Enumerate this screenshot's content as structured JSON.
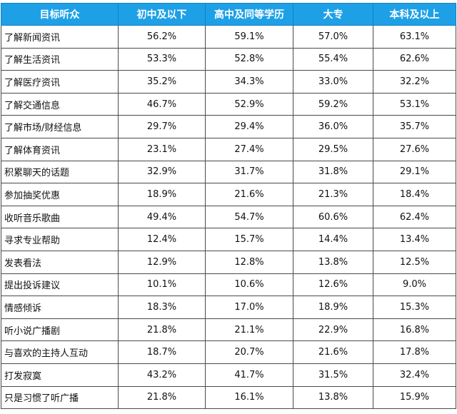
{
  "table": {
    "headers": [
      "目标听众",
      "初中及以下",
      "高中及同等学历",
      "大专",
      "本科及以上"
    ],
    "rows": [
      {
        "label": "了解新闻资讯",
        "values": [
          "56.2%",
          "59.1%",
          "57.0%",
          "63.1%"
        ]
      },
      {
        "label": "了解生活资讯",
        "values": [
          "53.3%",
          "52.8%",
          "55.4%",
          "62.6%"
        ]
      },
      {
        "label": "了解医疗资讯",
        "values": [
          "35.2%",
          "34.3%",
          "33.0%",
          "32.2%"
        ]
      },
      {
        "label": "了解交通信息",
        "values": [
          "46.7%",
          "52.9%",
          "59.2%",
          "53.1%"
        ]
      },
      {
        "label": "了解市场/财经信息",
        "values": [
          "29.7%",
          "29.4%",
          "36.0%",
          "35.7%"
        ]
      },
      {
        "label": "了解体育资讯",
        "values": [
          "23.1%",
          "27.4%",
          "29.5%",
          "27.6%"
        ]
      },
      {
        "label": "积累聊天的话题",
        "values": [
          "32.9%",
          "31.7%",
          "31.8%",
          "29.1%"
        ]
      },
      {
        "label": "参加抽奖优惠",
        "values": [
          "18.9%",
          "21.6%",
          "21.3%",
          "18.4%"
        ]
      },
      {
        "label": "收听音乐歌曲",
        "values": [
          "49.4%",
          "54.7%",
          "60.6%",
          "62.4%"
        ]
      },
      {
        "label": "寻求专业帮助",
        "values": [
          "12.4%",
          "15.7%",
          "14.4%",
          "13.4%"
        ]
      },
      {
        "label": "发表看法",
        "values": [
          "12.9%",
          "12.8%",
          "13.8%",
          "12.5%"
        ]
      },
      {
        "label": "提出投诉建议",
        "values": [
          "10.1%",
          "10.6%",
          "12.6%",
          "9.0%"
        ]
      },
      {
        "label": "情感倾诉",
        "values": [
          "18.3%",
          "17.0%",
          "18.9%",
          "15.3%"
        ]
      },
      {
        "label": "听小说广播剧",
        "values": [
          "21.8%",
          "21.1%",
          "22.9%",
          "16.8%"
        ]
      },
      {
        "label": "与喜欢的主持人互动",
        "values": [
          "18.7%",
          "20.7%",
          "21.6%",
          "17.8%"
        ]
      },
      {
        "label": "打发寂寞",
        "values": [
          "43.2%",
          "41.7%",
          "31.5%",
          "32.4%"
        ]
      },
      {
        "label": "只是习惯了听广播",
        "values": [
          "21.8%",
          "16.1%",
          "13.8%",
          "15.9%"
        ]
      }
    ]
  },
  "colors": {
    "header_background": "#1ea0e6",
    "header_text": "#ffffff",
    "grid_line": "#4a4a4a"
  }
}
